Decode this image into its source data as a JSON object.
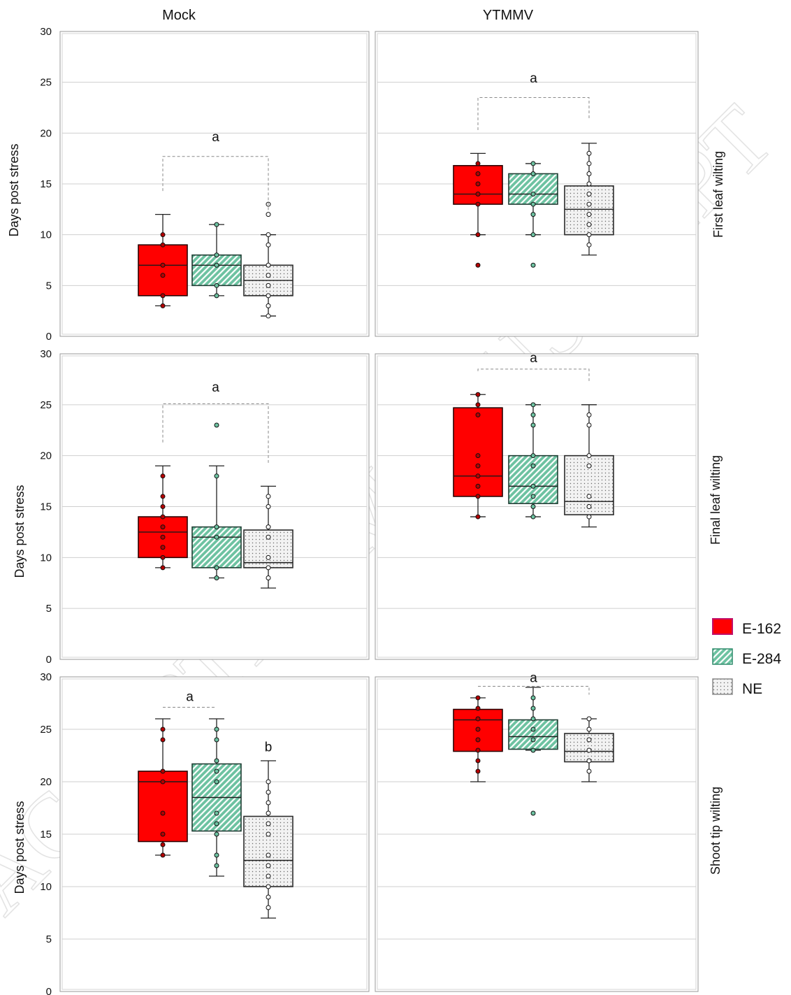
{
  "figure": {
    "columns": [
      "Mock",
      "YTMMV"
    ],
    "rows": [
      "First leaf wilting",
      "Final leaf wilting",
      "Shoot tip wilting"
    ],
    "ylabel": "Days post stress",
    "watermark": "ACCEPTED MANUSCRIPT"
  },
  "legend": {
    "items": [
      {
        "label": "E-162",
        "color": "#ff0000",
        "pattern": "solid"
      },
      {
        "label": "E-284",
        "color": "#6dc2a1",
        "pattern": "diagonal-stripes"
      },
      {
        "label": "NE",
        "color": "#f2f2f2",
        "pattern": "dots"
      }
    ]
  },
  "chart_data": [
    {
      "type": "box",
      "row": "First leaf wilting",
      "column": "Mock",
      "ylabel": "Days post stress",
      "ylim": [
        0,
        30
      ],
      "yticks": [
        0,
        5,
        10,
        15,
        20,
        25,
        30
      ],
      "grid": true,
      "categories": [
        "E-162",
        "E-284",
        "NE"
      ],
      "boxes": [
        {
          "name": "E-162",
          "min": 3,
          "q1": 4,
          "median": 7,
          "q3": 9,
          "max": 12,
          "points": [
            3,
            4,
            6,
            7,
            9,
            10
          ],
          "outliers": []
        },
        {
          "name": "E-284",
          "min": 4,
          "q1": 5,
          "median": 7,
          "q3": 8,
          "max": 11,
          "points": [
            4,
            5,
            7,
            8,
            11
          ],
          "outliers": []
        },
        {
          "name": "NE",
          "min": 2,
          "q1": 4,
          "median": 5.5,
          "q3": 7,
          "max": 10,
          "points": [
            2,
            3,
            4,
            5,
            6,
            7,
            9,
            10
          ],
          "outliers": [
            12,
            13
          ]
        }
      ],
      "significance": [
        {
          "label": "a",
          "groups": [
            "E-162",
            "NE"
          ],
          "y": 17.7,
          "label_y": 19.6
        }
      ]
    },
    {
      "type": "box",
      "row": "First leaf wilting",
      "column": "YTMMV",
      "ylabel": "Days post stress",
      "ylim": [
        0,
        30
      ],
      "yticks": [
        0,
        5,
        10,
        15,
        20,
        25,
        30
      ],
      "grid": true,
      "categories": [
        "E-162",
        "E-284",
        "NE"
      ],
      "boxes": [
        {
          "name": "E-162",
          "min": 10,
          "q1": 13,
          "median": 14,
          "q3": 16.8,
          "max": 18,
          "points": [
            10,
            13,
            14,
            15,
            16,
            17
          ],
          "outliers": [
            7
          ]
        },
        {
          "name": "E-284",
          "min": 10,
          "q1": 13,
          "median": 14,
          "q3": 16,
          "max": 17,
          "points": [
            10,
            12,
            13,
            14,
            16,
            17
          ],
          "outliers": [
            7
          ]
        },
        {
          "name": "NE",
          "min": 8,
          "q1": 10,
          "median": 12.5,
          "q3": 14.8,
          "max": 19,
          "points": [
            9,
            10,
            11,
            12,
            13,
            14,
            15,
            16,
            17,
            18
          ],
          "outliers": []
        }
      ],
      "significance": [
        {
          "label": "a",
          "groups": [
            "E-162",
            "NE"
          ],
          "y": 23.5,
          "label_y": 25.4
        }
      ]
    },
    {
      "type": "box",
      "row": "Final leaf wilting",
      "column": "Mock",
      "ylabel": "Days post stress",
      "ylim": [
        0,
        30
      ],
      "yticks": [
        0,
        5,
        10,
        15,
        20,
        25,
        30
      ],
      "grid": true,
      "categories": [
        "E-162",
        "E-284",
        "NE"
      ],
      "boxes": [
        {
          "name": "E-162",
          "min": 9,
          "q1": 10,
          "median": 12.5,
          "q3": 14,
          "max": 19,
          "points": [
            9,
            10,
            11,
            12,
            13,
            14,
            15,
            16,
            18
          ],
          "outliers": []
        },
        {
          "name": "E-284",
          "min": 8,
          "q1": 9,
          "median": 12,
          "q3": 13,
          "max": 19,
          "points": [
            8,
            9,
            12,
            13,
            18
          ],
          "outliers": [
            23
          ]
        },
        {
          "name": "NE",
          "min": 7,
          "q1": 9,
          "median": 9.5,
          "q3": 12.7,
          "max": 17,
          "points": [
            8,
            9,
            10,
            12,
            13,
            15,
            16
          ],
          "outliers": []
        }
      ],
      "significance": [
        {
          "label": "a",
          "groups": [
            "E-162",
            "NE"
          ],
          "y": 25.1,
          "label_y": 26.7
        }
      ]
    },
    {
      "type": "box",
      "row": "Final leaf wilting",
      "column": "YTMMV",
      "ylabel": "Days post stress",
      "ylim": [
        0,
        30
      ],
      "yticks": [
        0,
        5,
        10,
        15,
        20,
        25,
        30
      ],
      "grid": true,
      "categories": [
        "E-162",
        "E-284",
        "NE"
      ],
      "boxes": [
        {
          "name": "E-162",
          "min": 14,
          "q1": 16,
          "median": 18,
          "q3": 24.7,
          "max": 26,
          "points": [
            14,
            16,
            17,
            18,
            19,
            20,
            24,
            25,
            26
          ],
          "outliers": []
        },
        {
          "name": "E-284",
          "min": 14,
          "q1": 15.3,
          "median": 17,
          "q3": 20,
          "max": 25,
          "points": [
            14,
            15,
            16,
            17,
            19,
            20,
            23,
            24,
            25
          ],
          "outliers": []
        },
        {
          "name": "NE",
          "min": 13,
          "q1": 14.2,
          "median": 15.5,
          "q3": 20,
          "max": 25,
          "points": [
            14,
            15,
            16,
            19,
            20,
            23,
            24
          ],
          "outliers": []
        }
      ],
      "significance": [
        {
          "label": "a",
          "groups": [
            "E-162",
            "NE"
          ],
          "y": 28.5,
          "label_y": 29.6
        }
      ]
    },
    {
      "type": "box",
      "row": "Shoot tip wilting",
      "column": "Mock",
      "ylabel": "Days post stress",
      "ylim": [
        0,
        30
      ],
      "yticks": [
        0,
        5,
        10,
        15,
        20,
        25,
        30
      ],
      "grid": true,
      "categories": [
        "E-162",
        "E-284",
        "NE"
      ],
      "boxes": [
        {
          "name": "E-162",
          "min": 13,
          "q1": 14.3,
          "median": 20,
          "q3": 21,
          "max": 26,
          "points": [
            13,
            14,
            15,
            17,
            20,
            21,
            24,
            25
          ],
          "outliers": []
        },
        {
          "name": "E-284",
          "min": 11,
          "q1": 15.3,
          "median": 18.5,
          "q3": 21.7,
          "max": 26,
          "points": [
            12,
            13,
            15,
            16,
            17,
            20,
            21,
            22,
            24,
            25
          ],
          "outliers": []
        },
        {
          "name": "NE",
          "min": 7,
          "q1": 10,
          "median": 12.5,
          "q3": 16.7,
          "max": 22,
          "points": [
            8,
            9,
            10,
            11,
            12,
            13,
            15,
            16,
            17,
            18,
            19,
            20
          ],
          "outliers": []
        }
      ],
      "significance": [
        {
          "label": "a",
          "groups": [
            "E-162",
            "E-284"
          ],
          "y": 27.1,
          "label_y": 28.1
        },
        {
          "label": "b",
          "groups": [
            "NE"
          ],
          "y": null,
          "label_y": 23.3
        }
      ]
    },
    {
      "type": "box",
      "row": "Shoot tip wilting",
      "column": "YTMMV",
      "ylabel": "Days post stress",
      "ylim": [
        0,
        30
      ],
      "yticks": [
        0,
        5,
        10,
        15,
        20,
        25,
        30
      ],
      "grid": true,
      "categories": [
        "E-162",
        "E-284",
        "NE"
      ],
      "boxes": [
        {
          "name": "E-162",
          "min": 20,
          "q1": 22.9,
          "median": 25.9,
          "q3": 26.9,
          "max": 28,
          "points": [
            21,
            22,
            23,
            24,
            25,
            26,
            27,
            28
          ],
          "outliers": []
        },
        {
          "name": "E-284",
          "min": 23,
          "q1": 23.1,
          "median": 24.3,
          "q3": 25.9,
          "max": 29,
          "points": [
            23,
            24,
            25,
            26,
            27,
            28
          ],
          "outliers": [
            17
          ]
        },
        {
          "name": "NE",
          "min": 20,
          "q1": 21.9,
          "median": 22.9,
          "q3": 24.6,
          "max": 26,
          "points": [
            21,
            22,
            23,
            24,
            25,
            26
          ],
          "outliers": []
        }
      ],
      "significance": [
        {
          "label": "a",
          "groups": [
            "E-162",
            "NE"
          ],
          "y": 29.1,
          "label_y": 29.9
        }
      ]
    }
  ]
}
